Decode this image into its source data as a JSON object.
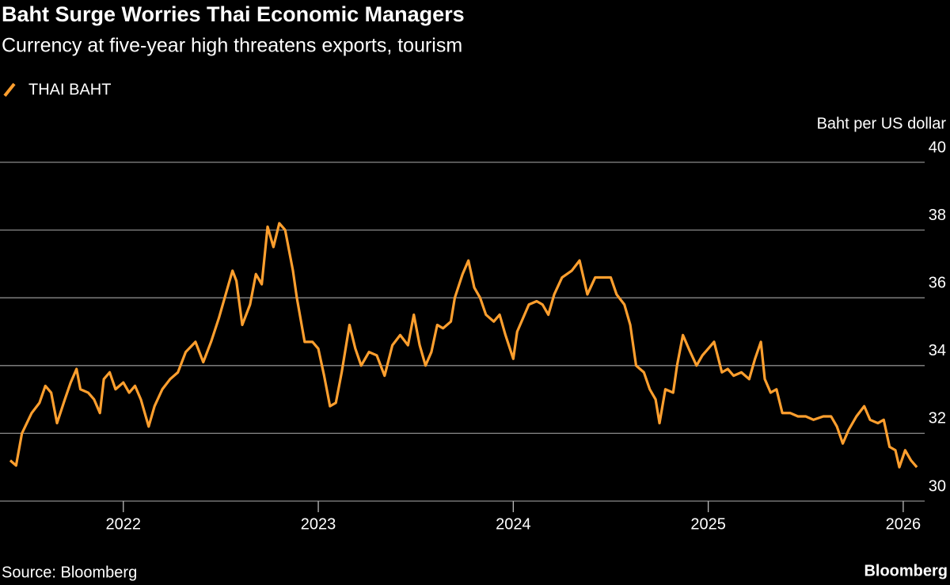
{
  "chart_data": {
    "type": "line",
    "title": "Baht Surge Worries Thai Economic Managers",
    "subtitle": "Currency at five-year high threatens exports, tourism",
    "y_axis_label": "Baht per US dollar",
    "source": "Source: Bloomberg",
    "brand": "Bloomberg",
    "x": [
      2021.42,
      2021.45,
      2021.48,
      2021.53,
      2021.57,
      2021.6,
      2021.63,
      2021.66,
      2021.7,
      2021.73,
      2021.76,
      2021.78,
      2021.82,
      2021.85,
      2021.88,
      2021.9,
      2021.93,
      2021.96,
      2022.0,
      2022.03,
      2022.06,
      2022.09,
      2022.13,
      2022.16,
      2022.2,
      2022.24,
      2022.28,
      2022.32,
      2022.37,
      2022.41,
      2022.45,
      2022.49,
      2022.52,
      2022.56,
      2022.58,
      2022.61,
      2022.65,
      2022.68,
      2022.71,
      2022.74,
      2022.77,
      2022.8,
      2022.83,
      2022.87,
      2022.89,
      2022.93,
      2022.97,
      2023.0,
      2023.03,
      2023.06,
      2023.09,
      2023.12,
      2023.16,
      2023.19,
      2023.22,
      2023.26,
      2023.3,
      2023.34,
      2023.38,
      2023.42,
      2023.46,
      2023.49,
      2023.52,
      2023.55,
      2023.58,
      2023.61,
      2023.64,
      2023.68,
      2023.7,
      2023.74,
      2023.77,
      2023.8,
      2023.83,
      2023.86,
      2023.9,
      2023.93,
      2023.96,
      2024.0,
      2024.02,
      2024.05,
      2024.08,
      2024.12,
      2024.15,
      2024.18,
      2024.21,
      2024.25,
      2024.3,
      2024.34,
      2024.38,
      2024.42,
      2024.46,
      2024.5,
      2024.53,
      2024.57,
      2024.6,
      2024.63,
      2024.67,
      2024.7,
      2024.73,
      2024.75,
      2024.78,
      2024.82,
      2024.84,
      2024.87,
      2024.9,
      2024.94,
      2024.97,
      2025.0,
      2025.03,
      2025.07,
      2025.1,
      2025.13,
      2025.17,
      2025.21,
      2025.24,
      2025.27,
      2025.29,
      2025.32,
      2025.35,
      2025.38,
      2025.42,
      2025.46,
      2025.5,
      2025.54,
      2025.59,
      2025.63,
      2025.66,
      2025.69,
      2025.72,
      2025.76,
      2025.8,
      2025.83,
      2025.87,
      2025.9,
      2025.93,
      2025.96,
      2025.98,
      2026.01,
      2026.04,
      2026.07
    ],
    "series": [
      {
        "name": "THAI BAHT",
        "color": "#ff9f2e",
        "values": [
          31.2,
          31.05,
          32,
          32.6,
          32.9,
          33.4,
          33.2,
          32.3,
          33,
          33.5,
          33.9,
          33.3,
          33.2,
          33,
          32.6,
          33.6,
          33.8,
          33.3,
          33.5,
          33.2,
          33.4,
          33,
          32.2,
          32.8,
          33.3,
          33.6,
          33.8,
          34.4,
          34.7,
          34.1,
          34.7,
          35.4,
          36,
          36.8,
          36.5,
          35.2,
          35.8,
          36.7,
          36.4,
          38.1,
          37.5,
          38.2,
          38,
          36.8,
          36,
          34.7,
          34.7,
          34.5,
          33.7,
          32.8,
          32.9,
          33.8,
          35.2,
          34.5,
          34,
          34.4,
          34.3,
          33.7,
          34.6,
          34.9,
          34.6,
          35.5,
          34.6,
          34,
          34.4,
          35.2,
          35.1,
          35.3,
          36,
          36.7,
          37.1,
          36.3,
          36,
          35.5,
          35.3,
          35.5,
          34.9,
          34.2,
          35,
          35.4,
          35.8,
          35.9,
          35.8,
          35.5,
          36.1,
          36.6,
          36.8,
          37.1,
          36.1,
          36.6,
          36.6,
          36.6,
          36.1,
          35.8,
          35.2,
          34,
          33.8,
          33.3,
          33,
          32.3,
          33.3,
          33.2,
          34,
          34.9,
          34.5,
          34,
          34.3,
          34.5,
          34.7,
          33.8,
          33.9,
          33.7,
          33.8,
          33.6,
          34.2,
          34.7,
          33.6,
          33.2,
          33.3,
          32.6,
          32.6,
          32.5,
          32.5,
          32.4,
          32.5,
          32.5,
          32.2,
          31.7,
          32.1,
          32.5,
          32.8,
          32.4,
          32.3,
          32.4,
          31.6,
          31.5,
          31,
          31.5,
          31.2,
          31
        ]
      }
    ],
    "xlim": [
      2021.4,
      2026.11
    ],
    "xticks": [
      2022,
      2023,
      2024,
      2025,
      2026
    ],
    "ylim": [
      30,
      40
    ],
    "yticks": [
      30,
      32,
      34,
      36,
      38,
      40
    ],
    "grid": true
  }
}
